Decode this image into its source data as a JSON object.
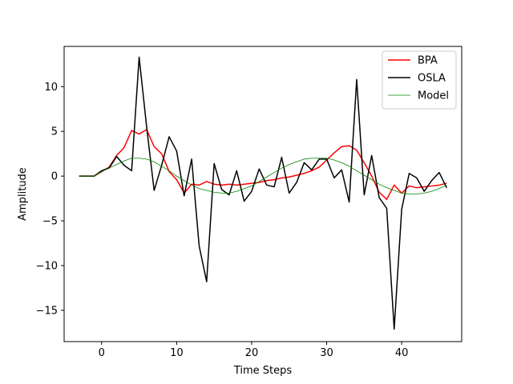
{
  "chart_data": {
    "type": "line",
    "title": "",
    "xlabel": "Time Steps",
    "ylabel": "Amplitude",
    "xlim": [
      -5,
      48
    ],
    "ylim": [
      -18.5,
      14.5
    ],
    "xticks": [
      0,
      10,
      20,
      30,
      40
    ],
    "yticks": [
      -15,
      -10,
      -5,
      0,
      5,
      10
    ],
    "grid": false,
    "legend_position": "top-right",
    "series": [
      {
        "name": "BPA",
        "color": "#ff0000",
        "line_width": 1.5,
        "x": [
          -3,
          -2,
          -1,
          0,
          1,
          2,
          3,
          4,
          5,
          6,
          7,
          8,
          9,
          10,
          11,
          12,
          13,
          14,
          15,
          16,
          17,
          18,
          19,
          20,
          21,
          22,
          23,
          24,
          25,
          26,
          27,
          28,
          29,
          30,
          31,
          32,
          33,
          34,
          35,
          36,
          37,
          38,
          39,
          40,
          41,
          42,
          43,
          44,
          45,
          46
        ],
        "values": [
          0,
          0,
          0,
          0.5,
          1,
          2.3,
          3.2,
          5.1,
          4.7,
          5.2,
          3.3,
          2.5,
          0.5,
          -0.4,
          -1.9,
          -0.9,
          -1.0,
          -0.6,
          -0.9,
          -1.0,
          -0.9,
          -1.0,
          -0.9,
          -0.8,
          -0.7,
          -0.5,
          -0.4,
          -0.2,
          -0.1,
          0.1,
          0.3,
          0.6,
          1.0,
          1.8,
          2.6,
          3.3,
          3.4,
          2.9,
          1.5,
          0.0,
          -1.8,
          -2.6,
          -1.0,
          -1.9,
          -1.1,
          -1.3,
          -1.2,
          -1.1,
          -1.0,
          -0.8
        ]
      },
      {
        "name": "OSLA",
        "color": "#000000",
        "line_width": 1.5,
        "x": [
          -3,
          -2,
          -1,
          0,
          1,
          2,
          3,
          4,
          5,
          6,
          7,
          8,
          9,
          10,
          11,
          12,
          13,
          14,
          15,
          16,
          17,
          18,
          19,
          20,
          21,
          22,
          23,
          24,
          25,
          26,
          27,
          28,
          29,
          30,
          31,
          32,
          33,
          34,
          35,
          36,
          37,
          38,
          39,
          40,
          41,
          42,
          43,
          44,
          45,
          46
        ],
        "values": [
          0,
          0,
          0,
          0.6,
          0.9,
          2.2,
          1.2,
          0.6,
          13.3,
          5.5,
          -1.6,
          1.2,
          4.4,
          2.8,
          -2.2,
          1.9,
          -7.8,
          -11.8,
          1.4,
          -1.5,
          -2.1,
          0.6,
          -2.8,
          -1.7,
          0.8,
          -1.0,
          -1.2,
          2.1,
          -1.9,
          -0.7,
          1.5,
          0.7,
          1.9,
          1.9,
          -0.2,
          0.7,
          -2.9,
          10.8,
          -2.1,
          2.3,
          -2.4,
          -3.6,
          -17.1,
          -3.7,
          0.3,
          -0.2,
          -1.7,
          -0.5,
          0.4,
          -1.3
        ]
      },
      {
        "name": "Model",
        "color": "#008000",
        "line_width": 0.8,
        "x": [
          -3,
          -2,
          -1,
          0,
          1,
          2,
          3,
          4,
          5,
          6,
          7,
          8,
          9,
          10,
          11,
          12,
          13,
          14,
          15,
          16,
          17,
          18,
          19,
          20,
          21,
          22,
          23,
          24,
          25,
          26,
          27,
          28,
          29,
          30,
          31,
          32,
          33,
          34,
          35,
          36,
          37,
          38,
          39,
          40,
          41,
          42,
          43,
          44,
          45,
          46
        ],
        "values": [
          0,
          0,
          0,
          0.5,
          0.9,
          1.3,
          1.7,
          2.0,
          2.0,
          1.9,
          1.6,
          1.1,
          0.6,
          0.0,
          -0.5,
          -1.0,
          -1.4,
          -1.6,
          -1.8,
          -1.9,
          -1.9,
          -1.7,
          -1.4,
          -1.1,
          -0.6,
          -0.1,
          0.4,
          0.9,
          1.3,
          1.6,
          1.9,
          2.0,
          2.0,
          2.0,
          1.8,
          1.5,
          1.1,
          0.6,
          0.1,
          -0.4,
          -0.9,
          -1.3,
          -1.6,
          -1.9,
          -2.0,
          -2.0,
          -1.9,
          -1.7,
          -1.4,
          -1.0
        ]
      }
    ]
  }
}
